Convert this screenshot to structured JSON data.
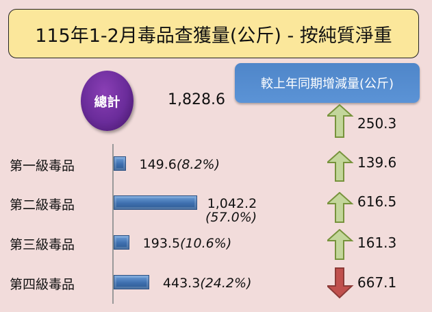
{
  "chart_data": {
    "type": "bar",
    "title": "115年1-2月毒品查獲量(公斤) - 按純質淨重",
    "total_label": "總計",
    "total_value": "1,828.6",
    "change_header": "較上年同期增減量(公斤)",
    "total_change": {
      "value": "250.3",
      "direction": "up"
    },
    "categories": [
      "第一級毒品",
      "第二級毒品",
      "第三級毒品",
      "第四級毒品"
    ],
    "values": [
      149.6,
      1042.2,
      193.5,
      443.3
    ],
    "value_labels": [
      "149.6",
      "1,042.2",
      "193.5",
      "443.3"
    ],
    "percent_labels": [
      "(8.2%)",
      "(57.0%)",
      "(10.6%)",
      "(24.2%)"
    ],
    "changes": [
      {
        "value": "139.6",
        "direction": "up"
      },
      {
        "value": "616.5",
        "direction": "up"
      },
      {
        "value": "161.3",
        "direction": "up"
      },
      {
        "value": "667.1",
        "direction": "down"
      }
    ],
    "colors": {
      "bar": "#4f81bd",
      "up": "#c3d69b",
      "down": "#c0504d",
      "total": "#6a2c9a",
      "header": "#558ed5",
      "title_bg": "#fbe79b"
    }
  }
}
